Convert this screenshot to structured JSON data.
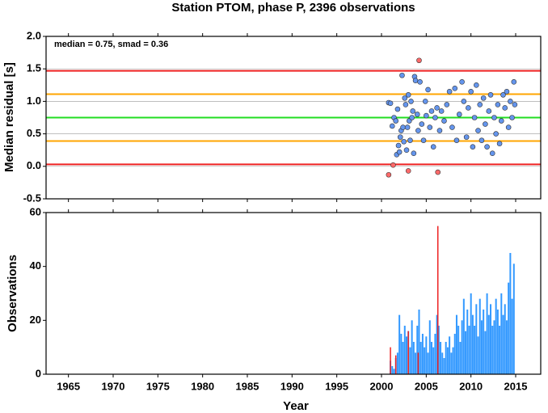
{
  "chart_data": [
    {
      "type": "scatter",
      "title": "Station PTOM, phase P, 2396 observations",
      "annotation": "median = 0.75, smad = 0.36",
      "y_label": "Median residual [s]",
      "xlim": [
        1962.5,
        2017.8
      ],
      "xticks": [
        1965,
        1970,
        1975,
        1980,
        1985,
        1990,
        1995,
        2000,
        2005,
        2010,
        2015
      ],
      "ylim": [
        -0.5,
        2.0
      ],
      "yticks": [
        -0.5,
        {
          "value": 0,
          "label": "0.0"
        },
        0.5,
        {
          "value": 1,
          "label": "1.0"
        },
        1.5,
        {
          "value": 2,
          "label": "2.0"
        }
      ],
      "grid": true,
      "hlines": [
        {
          "value": 1.47,
          "color": "#ee2222"
        },
        {
          "value": 0.03,
          "color": "#ee2222"
        },
        {
          "value": 1.11,
          "color": "#ffa500"
        },
        {
          "value": 0.39,
          "color": "#ffa500"
        },
        {
          "value": 0.75,
          "color": "#22dd22"
        }
      ],
      "series": [
        {
          "color": "#6495ed",
          "x": [
            2000.8,
            2001.0,
            2001.2,
            2001.4,
            2001.6,
            2001.7,
            2001.8,
            2001.9,
            2002.0,
            2002.1,
            2002.2,
            2002.3,
            2002.4,
            2002.5,
            2002.6,
            2002.7,
            2002.8,
            2002.9,
            2003.0,
            2003.1,
            2003.2,
            2003.3,
            2003.4,
            2003.5,
            2003.6,
            2003.7,
            2003.8,
            2004.0,
            2004.1,
            2004.3,
            2004.5,
            2004.7,
            2004.9,
            2005.0,
            2005.2,
            2005.4,
            2005.6,
            2005.8,
            2006.0,
            2006.2,
            2006.5,
            2006.7,
            2007.0,
            2007.3,
            2007.6,
            2007.9,
            2008.2,
            2008.4,
            2008.7,
            2009.0,
            2009.2,
            2009.5,
            2009.7,
            2010.0,
            2010.2,
            2010.4,
            2010.6,
            2010.8,
            2011.0,
            2011.2,
            2011.4,
            2011.6,
            2011.8,
            2012.0,
            2012.2,
            2012.4,
            2012.6,
            2012.8,
            2013.0,
            2013.2,
            2013.4,
            2013.6,
            2013.8,
            2014.0,
            2014.2,
            2014.4,
            2014.6,
            2014.8,
            2014.9
          ],
          "values": [
            0.98,
            0.97,
            0.62,
            0.75,
            0.7,
            0.18,
            0.88,
            0.32,
            0.22,
            0.45,
            0.55,
            1.4,
            0.6,
            0.38,
            1.05,
            0.95,
            0.25,
            0.6,
            1.1,
            0.7,
            0.4,
            1.0,
            0.75,
            0.85,
            0.2,
            1.38,
            1.32,
            0.8,
            0.55,
            1.3,
            0.65,
            0.4,
            1.0,
            0.78,
            1.18,
            0.6,
            0.85,
            0.3,
            0.75,
            0.9,
            0.55,
            0.85,
            0.7,
            0.95,
            1.15,
            0.6,
            1.2,
            0.4,
            0.8,
            1.3,
            1.0,
            0.45,
            0.9,
            1.15,
            0.3,
            0.75,
            1.25,
            0.55,
            0.95,
            0.4,
            1.05,
            0.65,
            0.3,
            0.85,
            1.1,
            0.2,
            0.75,
            0.5,
            0.95,
            0.35,
            0.7,
            1.1,
            0.9,
            1.15,
            0.6,
            1.0,
            0.75,
            1.3,
            0.95
          ]
        },
        {
          "color": "#ff6a6a",
          "x": [
            2000.8,
            2001.3,
            2003.0,
            2004.2,
            2006.3
          ],
          "values": [
            -0.13,
            0.02,
            -0.07,
            1.63,
            -0.09
          ]
        }
      ]
    },
    {
      "type": "bar",
      "x_label": "Year",
      "y_label": "Observations",
      "xlim": [
        1962.5,
        2017.8
      ],
      "xticks": [
        1965,
        1970,
        1975,
        1980,
        1985,
        1990,
        1995,
        2000,
        2005,
        2010,
        2015
      ],
      "ylim": [
        0,
        60
      ],
      "yticks": [
        0,
        20,
        40,
        60
      ],
      "series": [
        {
          "color": "#3399ff",
          "x": [
            2001.0,
            2001.2,
            2001.4,
            2001.6,
            2001.8,
            2002.0,
            2002.2,
            2002.4,
            2002.6,
            2002.8,
            2003.0,
            2003.2,
            2003.4,
            2003.6,
            2003.8,
            2004.0,
            2004.2,
            2004.4,
            2004.6,
            2004.8,
            2005.0,
            2005.2,
            2005.4,
            2005.6,
            2005.8,
            2006.0,
            2006.2,
            2006.4,
            2006.6,
            2006.8,
            2007.0,
            2007.2,
            2007.4,
            2007.6,
            2007.8,
            2008.0,
            2008.2,
            2008.4,
            2008.6,
            2008.8,
            2009.0,
            2009.2,
            2009.4,
            2009.6,
            2009.8,
            2010.0,
            2010.2,
            2010.4,
            2010.6,
            2010.8,
            2011.0,
            2011.2,
            2011.4,
            2011.6,
            2011.8,
            2012.0,
            2012.2,
            2012.4,
            2012.6,
            2012.8,
            2013.0,
            2013.2,
            2013.4,
            2013.6,
            2013.8,
            2014.0,
            2014.2,
            2014.4,
            2014.6,
            2014.8
          ],
          "values": [
            5,
            3,
            2,
            6,
            8,
            22,
            15,
            12,
            18,
            14,
            16,
            10,
            20,
            12,
            8,
            18,
            24,
            12,
            15,
            10,
            14,
            8,
            20,
            12,
            10,
            15,
            22,
            18,
            12,
            8,
            6,
            12,
            10,
            14,
            8,
            10,
            15,
            22,
            18,
            12,
            20,
            28,
            16,
            24,
            18,
            30,
            22,
            18,
            26,
            14,
            28,
            20,
            24,
            16,
            30,
            22,
            26,
            18,
            20,
            28,
            24,
            18,
            30,
            22,
            26,
            20,
            34,
            45,
            28,
            41
          ]
        },
        {
          "color": "#ee2222",
          "x": [
            2001.0,
            2001.6,
            2003.0,
            2004.1,
            2006.3
          ],
          "values": [
            10,
            7,
            16,
            8,
            55
          ]
        }
      ]
    }
  ]
}
